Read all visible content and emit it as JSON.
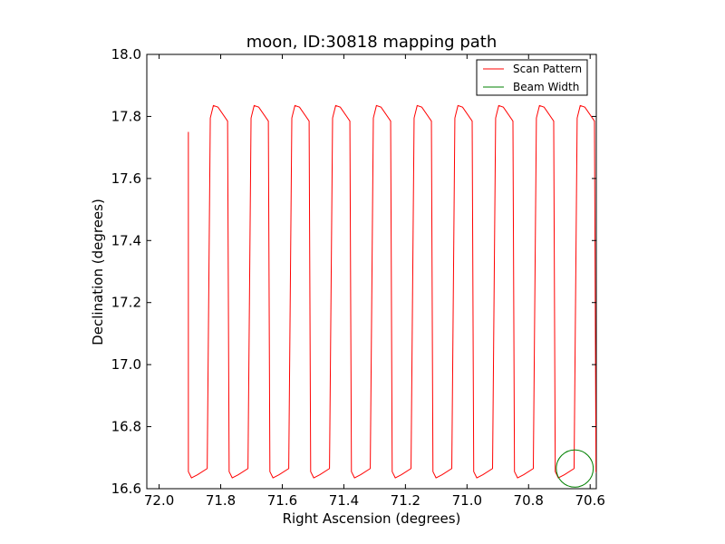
{
  "chart_data": {
    "type": "line",
    "title": "moon, ID:30818 mapping path",
    "xlabel": "Right Ascension (degrees)",
    "ylabel": "Declination (degrees)",
    "xlim": [
      72.04,
      70.58
    ],
    "ylim": [
      16.6,
      18.0
    ],
    "x_reversed": true,
    "xticks": [
      72.0,
      71.8,
      71.6,
      71.4,
      71.2,
      71.0,
      70.8,
      70.6
    ],
    "xtick_labels": [
      "72.0",
      "71.8",
      "71.6",
      "71.4",
      "71.2",
      "71.0",
      "70.8",
      "70.6"
    ],
    "yticks": [
      16.6,
      16.8,
      17.0,
      17.2,
      17.4,
      17.6,
      17.8,
      18.0
    ],
    "ytick_labels": [
      "16.6",
      "16.8",
      "17.0",
      "17.2",
      "17.4",
      "17.6",
      "17.8",
      "18.0"
    ],
    "grid": false,
    "legend_position": "top-right",
    "series": [
      {
        "name": "Scan Pattern",
        "color": "#ff0000",
        "scan_x_start": 71.905,
        "scan_x_step": 0.0662,
        "scan_count": 22,
        "dec_start": 17.75,
        "dec_top": 17.835,
        "dec_bottom": 16.635
      },
      {
        "name": "Beam Width",
        "color": "#008000",
        "center_x": 70.65,
        "center_y": 16.665,
        "radius": 0.06
      }
    ]
  }
}
